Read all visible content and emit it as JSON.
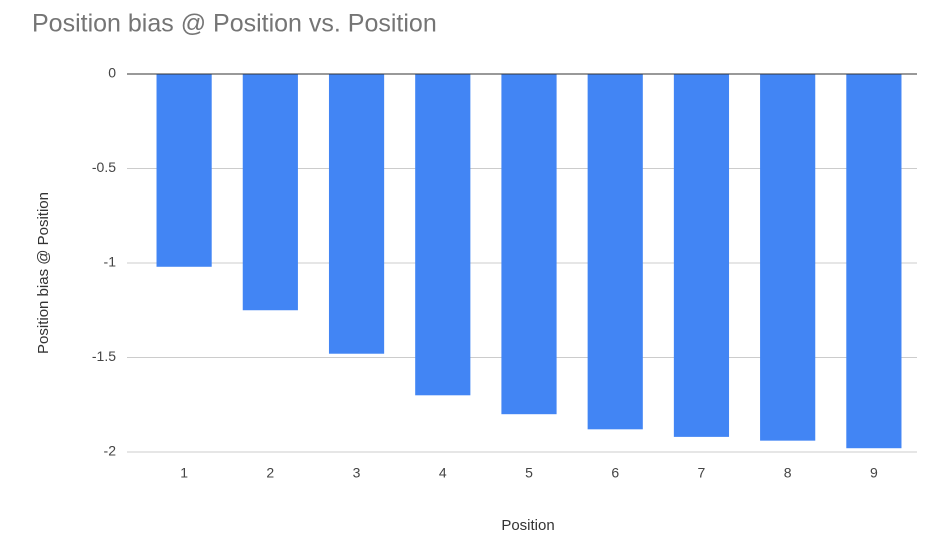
{
  "chart_data": {
    "type": "bar",
    "title": "Position bias @ Position vs. Position",
    "x_label": "Position",
    "y_label": "Position bias @ Position",
    "categories": [
      "1",
      "2",
      "3",
      "4",
      "5",
      "6",
      "7",
      "8",
      "9"
    ],
    "values": [
      -1.02,
      -1.25,
      -1.48,
      -1.7,
      -1.8,
      -1.88,
      -1.92,
      -1.94,
      -1.98
    ],
    "color": "#4285f4",
    "ylim": [
      -2,
      0
    ],
    "yticks": [
      0,
      -0.5,
      -1,
      -1.5,
      -2
    ],
    "grid": true
  }
}
